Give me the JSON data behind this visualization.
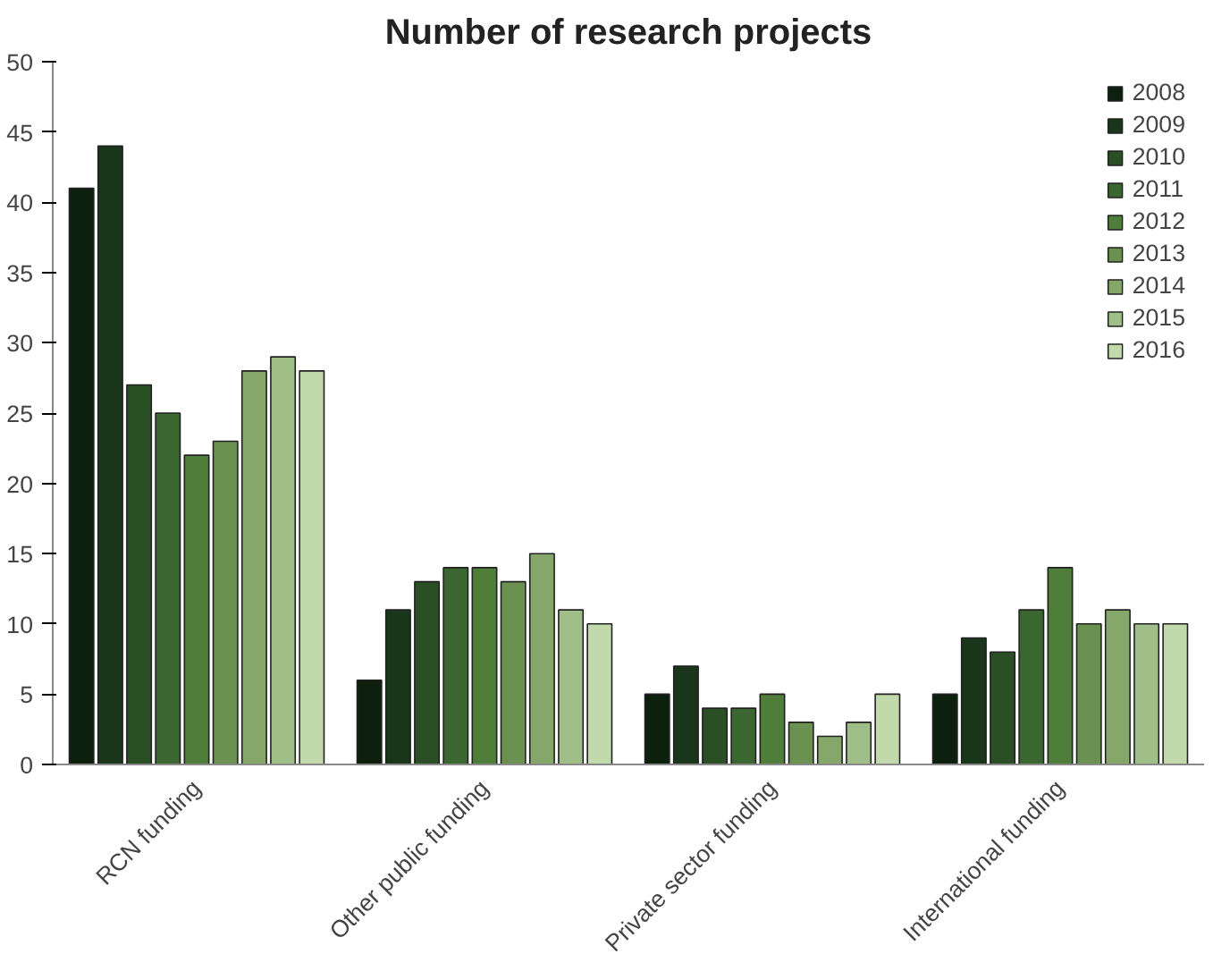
{
  "chart_data": {
    "type": "bar",
    "title": "Number of research projects",
    "categories": [
      "RCN funding",
      "Other public funding",
      "Private sector funding",
      "International funding"
    ],
    "series": [
      {
        "name": "2008",
        "color": "#0d1f0d",
        "values": [
          41,
          6,
          5,
          5
        ]
      },
      {
        "name": "2009",
        "color": "#1a361a",
        "values": [
          44,
          11,
          7,
          9
        ]
      },
      {
        "name": "2010",
        "color": "#2a4f25",
        "values": [
          27,
          13,
          4,
          8
        ]
      },
      {
        "name": "2011",
        "color": "#3a6630",
        "values": [
          25,
          14,
          4,
          11
        ]
      },
      {
        "name": "2012",
        "color": "#4f7d3a",
        "values": [
          22,
          14,
          5,
          14
        ]
      },
      {
        "name": "2013",
        "color": "#6a9150",
        "values": [
          23,
          13,
          3,
          10
        ]
      },
      {
        "name": "2014",
        "color": "#85a86a",
        "values": [
          28,
          15,
          2,
          11
        ]
      },
      {
        "name": "2015",
        "color": "#a0bf88",
        "values": [
          29,
          11,
          3,
          10
        ]
      },
      {
        "name": "2016",
        "color": "#c2d9ac",
        "values": [
          28,
          10,
          5,
          10
        ]
      }
    ],
    "ylim": [
      0,
      50
    ],
    "yticks": [
      0,
      5,
      10,
      15,
      20,
      25,
      30,
      35,
      40,
      45,
      50
    ],
    "grid": false,
    "legend": "top right"
  }
}
